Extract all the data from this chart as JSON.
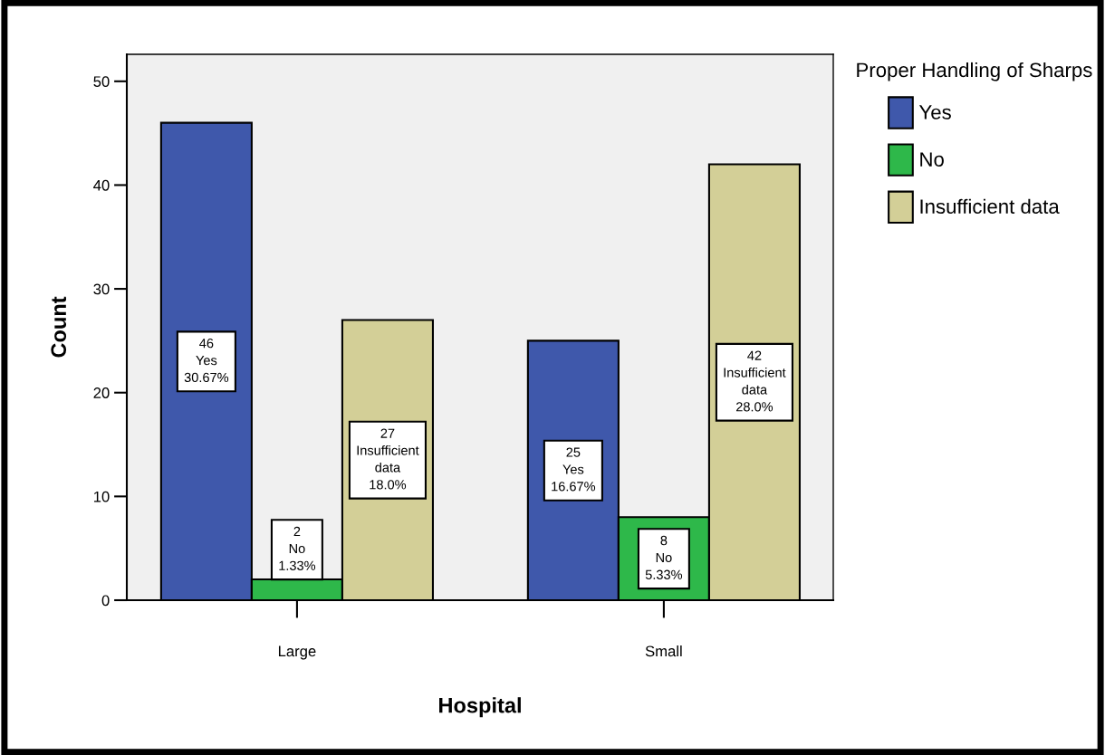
{
  "chart_data": {
    "type": "bar",
    "xlabel": "Hospital",
    "ylabel": "Count",
    "legend_title": "Proper Handling of Sharps",
    "legend": "right",
    "categories": [
      "Large",
      "Small"
    ],
    "series": [
      {
        "name": "Yes",
        "color": "#3f58ab",
        "values": [
          46,
          25
        ],
        "value_labels": [
          "46\nYes\n30.67%",
          "25\nYes\n16.67%"
        ]
      },
      {
        "name": "No",
        "color": "#2eb84a",
        "values": [
          2,
          8
        ],
        "value_labels": [
          "2\nNo\n1.33%",
          "8\nNo\n5.33%"
        ]
      },
      {
        "name": "Insufficient data",
        "color": "#d3cf97",
        "values": [
          27,
          42
        ],
        "value_labels": [
          "27\nInsufficient\ndata\n18.0%",
          "42\nInsufficient\ndata\n28.0%"
        ]
      }
    ],
    "ylim": [
      0,
      52.6
    ],
    "yticks": [
      0,
      10,
      20,
      30,
      40,
      50
    ],
    "grid": false
  }
}
